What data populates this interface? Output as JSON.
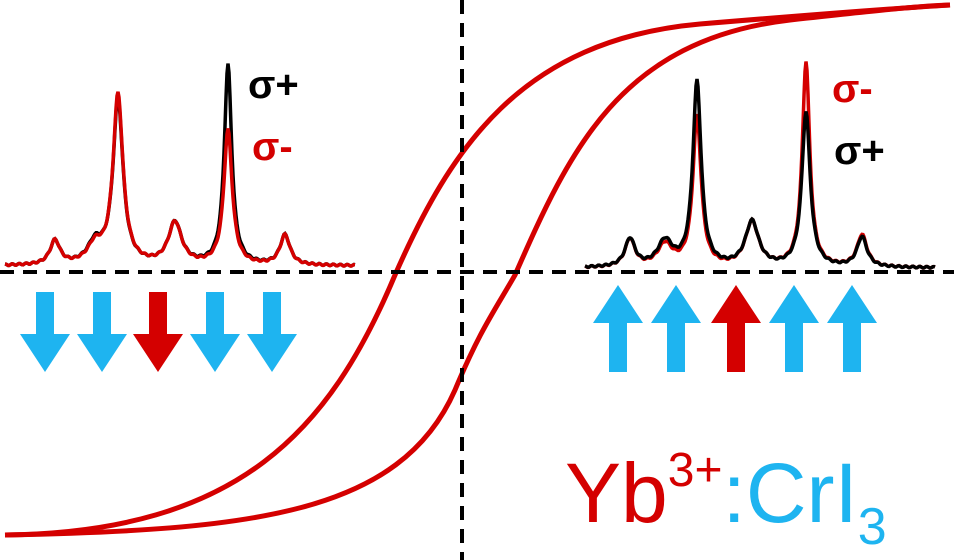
{
  "spectra_left": {
    "labels": [
      "σ+",
      "σ-"
    ]
  },
  "spectra_right": {
    "labels": [
      "σ-",
      "σ+"
    ]
  },
  "formula": {
    "ion": "Yb",
    "charge": "3+",
    "host": ":CrI",
    "subscript": "3"
  }
}
